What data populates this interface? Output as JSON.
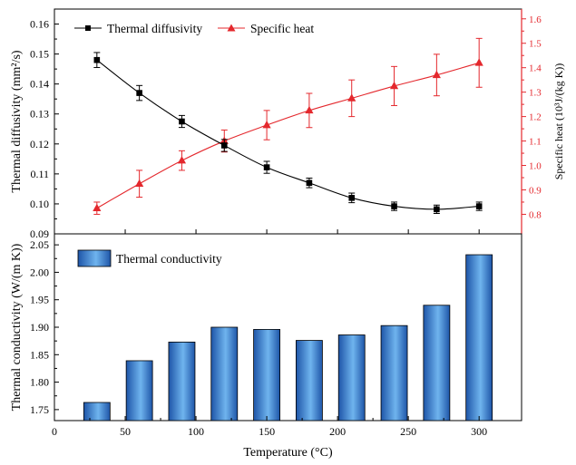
{
  "colors": {
    "diffusivity": "#000000",
    "specific_heat": "#e4282d",
    "bar_dark": "#1e55a8",
    "bar_light": "#6fb4ee",
    "axis": "#000000"
  },
  "chart_data": [
    {
      "type": "line",
      "position": "top",
      "grid": false,
      "legend": "top-left",
      "x": [
        30,
        60,
        90,
        120,
        150,
        180,
        210,
        240,
        270,
        300
      ],
      "xlim": [
        0,
        330
      ],
      "series": [
        {
          "name": "Thermal diffusivity",
          "marker": "square",
          "axis": "left",
          "values": [
            0.148,
            0.137,
            0.1275,
            0.1195,
            0.1122,
            0.107,
            0.102,
            0.0992,
            0.0982,
            0.0992
          ],
          "errors": [
            0.0025,
            0.0025,
            0.002,
            0.002,
            0.002,
            0.0016,
            0.0016,
            0.0014,
            0.0014,
            0.0014
          ]
        },
        {
          "name": "Specific heat",
          "marker": "triangle",
          "axis": "right",
          "values": [
            0.825,
            0.925,
            1.02,
            1.1,
            1.165,
            1.225,
            1.275,
            1.325,
            1.37,
            1.42
          ],
          "errors": [
            0.025,
            0.055,
            0.04,
            0.045,
            0.06,
            0.07,
            0.075,
            0.08,
            0.085,
            0.1
          ]
        }
      ],
      "ylabel": "Thermal diffusivity (mm²/s)",
      "ylim": [
        0.09,
        0.165
      ],
      "yticks": [
        "0.09",
        "0.10",
        "0.11",
        "0.12",
        "0.13",
        "0.14",
        "0.15",
        "0.16"
      ],
      "ylabel_right": "Specific heat  (10³J/(kg K))",
      "ylim_right": [
        0.72,
        1.64
      ],
      "yticks_right": [
        "0.8",
        "0.9",
        "1.0",
        "1.1",
        "1.2",
        "1.3",
        "1.4",
        "1.5",
        "1.6"
      ]
    },
    {
      "type": "bar",
      "position": "bottom",
      "grid": false,
      "legend": "top-left",
      "series": [
        {
          "name": "Thermal conductivity",
          "x": [
            30,
            60,
            90,
            120,
            150,
            180,
            210,
            240,
            270,
            300
          ],
          "values": [
            1.763,
            1.839,
            1.873,
            1.9,
            1.896,
            1.876,
            1.886,
            1.903,
            1.94,
            2.032
          ]
        }
      ],
      "xlabel": "Temperature (°C)",
      "xlim": [
        0,
        330
      ],
      "xticks": [
        "0",
        "50",
        "100",
        "150",
        "200",
        "250",
        "300"
      ],
      "ylabel": "Thermal conductivity (W/(m K))",
      "ylim": [
        1.73,
        2.07
      ],
      "yticks": [
        "1.75",
        "1.80",
        "1.85",
        "1.90",
        "1.95",
        "2.00",
        "2.05"
      ]
    }
  ]
}
